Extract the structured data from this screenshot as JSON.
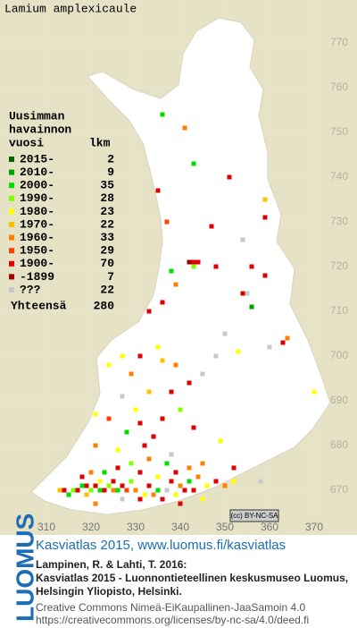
{
  "title": "Lamium amplexicaule",
  "legend": {
    "title": [
      "Uusimman",
      "havainnon",
      "vuosi"
    ],
    "count_header": "lkm",
    "classes": [
      {
        "label": "2015-",
        "count": 2,
        "color": "#006400"
      },
      {
        "label": "2010-",
        "count": 9,
        "color": "#00a000"
      },
      {
        "label": "2000-",
        "count": 35,
        "color": "#00e000"
      },
      {
        "label": "1990-",
        "count": 28,
        "color": "#80ff00"
      },
      {
        "label": "1980-",
        "count": 23,
        "color": "#ffff00"
      },
      {
        "label": "1970-",
        "count": 22,
        "color": "#ffc000"
      },
      {
        "label": "1960-",
        "count": 33,
        "color": "#ff8000"
      },
      {
        "label": "1950-",
        "count": 29,
        "color": "#ff4000"
      },
      {
        "label": "1900-",
        "count": 70,
        "color": "#e00000"
      },
      {
        "label": "-1899",
        "count": 7,
        "color": "#a00000"
      },
      {
        "label": "???",
        "count": 22,
        "color": "#c8c8c8"
      }
    ],
    "total_label": "Yhteensä",
    "total": 280
  },
  "map": {
    "xticks": [
      310,
      320,
      330,
      340,
      350,
      360,
      370
    ],
    "yticks": [
      670,
      680,
      690,
      700,
      710,
      720,
      730,
      740,
      750,
      760,
      770
    ],
    "records": [
      [
        336,
        754,
        2
      ],
      [
        341,
        751,
        6
      ],
      [
        343,
        743,
        2
      ],
      [
        351,
        740,
        8
      ],
      [
        335,
        737,
        8
      ],
      [
        359,
        735,
        5
      ],
      [
        359,
        731,
        8
      ],
      [
        337,
        730,
        7
      ],
      [
        347,
        729,
        8
      ],
      [
        354,
        726,
        10
      ],
      [
        343,
        721,
        8
      ],
      [
        342,
        721,
        9
      ],
      [
        343,
        720,
        3
      ],
      [
        344,
        721,
        8
      ],
      [
        338,
        719,
        2
      ],
      [
        348,
        720,
        8
      ],
      [
        356,
        720,
        8
      ],
      [
        359,
        718,
        8
      ],
      [
        354,
        714,
        8
      ],
      [
        355,
        714,
        10
      ],
      [
        356,
        711,
        1
      ],
      [
        339,
        716,
        6
      ],
      [
        336,
        712,
        8
      ],
      [
        333,
        710,
        8
      ],
      [
        350,
        705,
        10
      ],
      [
        364,
        704,
        6
      ],
      [
        363,
        703,
        8
      ],
      [
        335,
        702,
        4
      ],
      [
        360,
        702,
        10
      ],
      [
        327,
        700,
        4
      ],
      [
        331,
        700,
        8
      ],
      [
        348,
        700,
        10
      ],
      [
        336,
        699,
        5
      ],
      [
        353,
        701,
        4
      ],
      [
        324,
        698,
        4
      ],
      [
        339,
        698,
        6
      ],
      [
        329,
        696,
        6
      ],
      [
        342,
        694,
        8
      ],
      [
        345,
        696,
        10
      ],
      [
        370,
        692,
        4
      ],
      [
        338,
        692,
        8
      ],
      [
        333,
        692,
        5
      ],
      [
        327,
        691,
        10
      ],
      [
        321,
        687,
        4
      ],
      [
        324,
        686,
        7
      ],
      [
        336,
        686,
        8
      ],
      [
        340,
        688,
        3
      ],
      [
        331,
        685,
        8
      ],
      [
        328,
        683,
        2
      ],
      [
        343,
        684,
        8
      ],
      [
        349,
        681,
        4
      ],
      [
        332,
        680,
        8
      ],
      [
        321,
        680,
        6
      ],
      [
        326,
        679,
        4
      ],
      [
        337,
        676,
        2
      ],
      [
        345,
        676,
        6
      ],
      [
        352,
        675,
        8
      ],
      [
        358,
        672,
        10
      ],
      [
        313,
        670,
        5
      ],
      [
        314,
        670,
        8
      ],
      [
        315,
        669,
        2
      ],
      [
        316,
        670,
        3
      ],
      [
        317,
        670,
        8
      ],
      [
        318,
        671,
        2
      ],
      [
        319,
        671,
        8
      ],
      [
        319,
        669,
        5
      ],
      [
        320,
        670,
        3
      ],
      [
        321,
        671,
        8
      ],
      [
        322,
        670,
        2
      ],
      [
        322,
        672,
        4
      ],
      [
        323,
        670,
        8
      ],
      [
        324,
        671,
        3
      ],
      [
        325,
        670,
        6
      ],
      [
        325,
        672,
        8
      ],
      [
        326,
        670,
        2
      ],
      [
        327,
        671,
        8
      ],
      [
        328,
        670,
        7
      ],
      [
        329,
        672,
        3
      ],
      [
        330,
        670,
        6
      ],
      [
        331,
        668,
        8
      ],
      [
        332,
        669,
        4
      ],
      [
        333,
        671,
        8
      ],
      [
        334,
        669,
        6
      ],
      [
        335,
        670,
        2
      ],
      [
        336,
        668,
        8
      ],
      [
        337,
        670,
        10
      ],
      [
        338,
        672,
        8
      ],
      [
        339,
        669,
        4
      ],
      [
        340,
        671,
        6
      ],
      [
        341,
        670,
        8
      ],
      [
        342,
        672,
        2
      ],
      [
        343,
        670,
        8
      ],
      [
        344,
        673,
        6
      ],
      [
        346,
        671,
        4
      ],
      [
        348,
        672,
        8
      ],
      [
        350,
        671,
        6
      ],
      [
        352,
        672,
        4
      ],
      [
        323,
        674,
        2
      ],
      [
        326,
        675,
        8
      ],
      [
        329,
        676,
        3
      ],
      [
        331,
        674,
        8
      ],
      [
        333,
        677,
        6
      ],
      [
        320,
        674,
        6
      ],
      [
        318,
        673,
        8
      ],
      [
        335,
        673,
        4
      ],
      [
        339,
        674,
        8
      ],
      [
        342,
        675,
        6
      ],
      [
        338,
        678,
        10
      ],
      [
        334,
        682,
        8
      ],
      [
        330,
        688,
        4
      ],
      [
        327,
        668,
        10
      ],
      [
        321,
        667,
        6
      ],
      [
        340,
        667,
        8
      ],
      [
        345,
        668,
        4
      ]
    ]
  },
  "badge": "(cc) BY-NC-SA",
  "footer": {
    "brand": "LUOMUS",
    "link": "Kasviatlas 2015, www.luomus.fi/kasviatlas",
    "citation": [
      "Lampinen, R. & Lahti, T. 2016:",
      "Kasviatlas 2015 - Luonnontieteellinen keskusmuseo Luomus,",
      "Helsingin Yliopisto, Helsinki."
    ],
    "license": [
      "Creative Commons Nimeä-EiKaupallinen-JaaSamoin 4.0",
      "https://creativecommons.org/licenses/by-nc-sa/4.0/deed.fi"
    ]
  }
}
